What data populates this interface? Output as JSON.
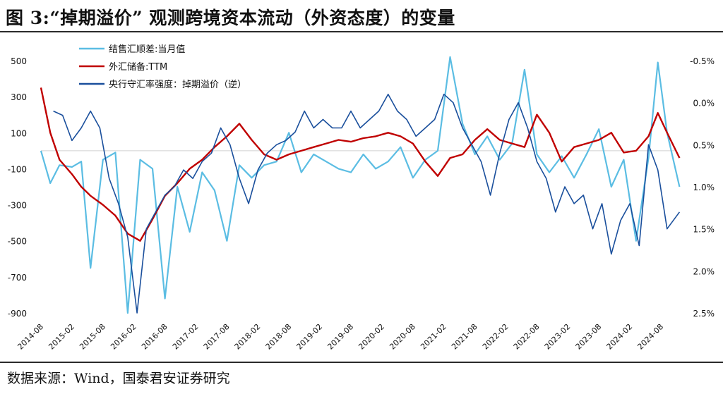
{
  "title": "图 3:“掉期溢价” 观测跨境资本流动（外资态度）的变量",
  "source": "数据来源：Wind，国泰君安证券研究",
  "colors": {
    "series1": "#5bbde3",
    "series2": "#c00000",
    "series3": "#1a4f9c",
    "zero_line": "#d0d0d0"
  },
  "chart_data": {
    "type": "line",
    "x_axis_labels": [
      "2014-08",
      "2015-02",
      "2015-08",
      "2016-02",
      "2016-08",
      "2017-02",
      "2017-08",
      "2018-02",
      "2018-08",
      "2019-02",
      "2019-08",
      "2020-02",
      "2020-08",
      "2021-02",
      "2021-08",
      "2022-02",
      "2022-08",
      "2023-02",
      "2023-08",
      "2024-02",
      "2024-08"
    ],
    "left_axis": {
      "min": -900,
      "max": 500,
      "ticks": [
        "500",
        "300",
        "100",
        "-100",
        "-300",
        "-500",
        "-700",
        "-900"
      ]
    },
    "right_axis": {
      "min": -0.5,
      "max": 2.5,
      "inverted": true,
      "ticks": [
        "-0.5%",
        "0.0%",
        "0.5%",
        "1.0%",
        "1.5%",
        "2.0%",
        "2.5%"
      ]
    },
    "legend": {
      "placement": "top-left"
    },
    "series": [
      {
        "name": "结售汇顺差:当月值",
        "axis": "left",
        "x": [
          0,
          0.3,
          0.6,
          1,
          1.3,
          1.6,
          2,
          2.4,
          2.8,
          3.2,
          3.6,
          4,
          4.4,
          4.8,
          5.2,
          5.6,
          6,
          6.4,
          6.8,
          7.2,
          7.6,
          8,
          8.4,
          8.8,
          9.2,
          9.6,
          10,
          10.4,
          10.8,
          11.2,
          11.6,
          12,
          12.4,
          12.8,
          13.2,
          13.6,
          14,
          14.4,
          14.8,
          15.2,
          15.6,
          16,
          16.4,
          16.8,
          17.2,
          17.6,
          18,
          18.4,
          18.8,
          19.2,
          19.6,
          19.9,
          20.2,
          20.6
        ],
        "values": [
          0,
          -180,
          -80,
          -90,
          -60,
          -650,
          -50,
          -10,
          -900,
          -50,
          -100,
          -820,
          -200,
          -450,
          -120,
          -220,
          -500,
          -80,
          -150,
          -80,
          -60,
          100,
          -120,
          -20,
          -60,
          -100,
          -120,
          -20,
          -100,
          -60,
          20,
          -150,
          -50,
          0,
          520,
          150,
          -20,
          80,
          -50,
          40,
          450,
          -20,
          -120,
          -30,
          -150,
          -20,
          120,
          -200,
          -50,
          -500,
          -40,
          490,
          100,
          -200
        ]
      },
      {
        "name": "外汇储备:TTM",
        "axis": "left",
        "x": [
          0,
          0.3,
          0.6,
          1,
          1.3,
          1.6,
          2,
          2.4,
          2.8,
          3.2,
          3.6,
          4,
          4.4,
          4.8,
          5.2,
          5.6,
          6,
          6.4,
          6.8,
          7.2,
          7.6,
          8,
          8.4,
          8.8,
          9.2,
          9.6,
          10,
          10.4,
          10.8,
          11.2,
          11.6,
          12,
          12.4,
          12.8,
          13.2,
          13.6,
          14,
          14.4,
          14.8,
          15.2,
          15.6,
          16,
          16.4,
          16.8,
          17.2,
          17.6,
          18,
          18.4,
          18.8,
          19.2,
          19.6,
          19.9,
          20.2,
          20.6
        ],
        "values": [
          350,
          100,
          -50,
          -130,
          -200,
          -250,
          -300,
          -360,
          -460,
          -500,
          -380,
          -250,
          -180,
          -100,
          -50,
          20,
          80,
          150,
          60,
          -20,
          -50,
          -20,
          0,
          20,
          40,
          60,
          50,
          70,
          80,
          100,
          80,
          40,
          -60,
          -140,
          -40,
          -20,
          60,
          120,
          60,
          40,
          20,
          200,
          100,
          -60,
          20,
          40,
          60,
          100,
          -10,
          0,
          80,
          210,
          100,
          -40
        ]
      },
      {
        "name": "央行守汇率强度：掉期溢价（逆）",
        "axis": "right",
        "x": [
          0.4,
          0.7,
          1,
          1.3,
          1.6,
          1.9,
          2.2,
          2.5,
          2.8,
          3.1,
          3.4,
          3.7,
          4,
          4.3,
          4.6,
          4.9,
          5.2,
          5.5,
          5.8,
          6.1,
          6.4,
          6.7,
          7,
          7.3,
          7.6,
          7.9,
          8.2,
          8.5,
          8.8,
          9.1,
          9.4,
          9.7,
          10,
          10.3,
          10.6,
          10.9,
          11.2,
          11.5,
          11.8,
          12.1,
          12.4,
          12.7,
          13,
          13.3,
          13.6,
          13.9,
          14.2,
          14.5,
          14.8,
          15.1,
          15.4,
          15.7,
          16,
          16.3,
          16.6,
          16.9,
          17.2,
          17.5,
          17.8,
          18.1,
          18.4,
          18.7,
          19,
          19.3,
          19.6,
          19.9,
          20.2,
          20.6
        ],
        "values": [
          0.1,
          0.15,
          0.45,
          0.3,
          0.1,
          0.3,
          0.9,
          1.2,
          1.6,
          2.5,
          1.5,
          1.3,
          1.1,
          1.0,
          0.8,
          0.9,
          0.7,
          0.6,
          0.3,
          0.5,
          0.9,
          1.2,
          0.8,
          0.6,
          0.5,
          0.45,
          0.35,
          0.1,
          0.3,
          0.2,
          0.3,
          0.3,
          0.1,
          0.3,
          0.2,
          0.1,
          -0.1,
          0.1,
          0.2,
          0.4,
          0.3,
          0.2,
          -0.1,
          0.0,
          0.3,
          0.5,
          0.7,
          1.1,
          0.6,
          0.2,
          0.0,
          0.3,
          0.7,
          0.9,
          1.3,
          1.0,
          1.2,
          1.1,
          1.5,
          1.2,
          1.8,
          1.4,
          1.2,
          1.7,
          0.5,
          0.8,
          1.5,
          1.3
        ]
      }
    ]
  }
}
